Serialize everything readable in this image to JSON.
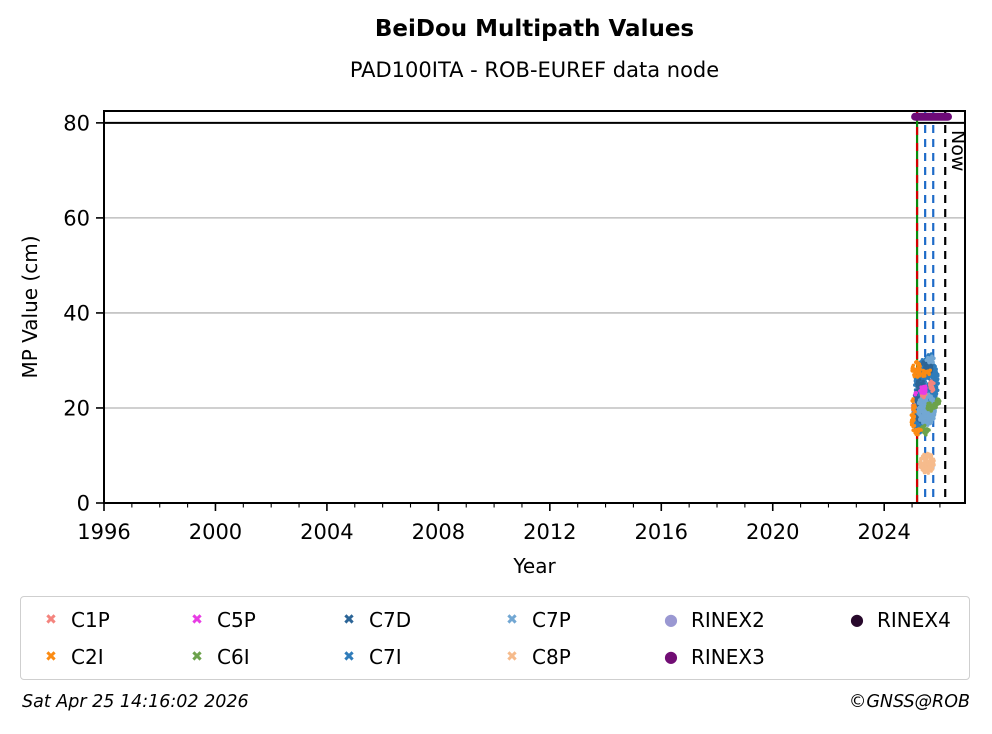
{
  "header": {
    "title": "BeiDou Multipath Values",
    "subtitle": "PAD100ITA - ROB-EUREF data node"
  },
  "footer": {
    "timestamp": "Sat Apr 25 14:16:02 2026",
    "credit": "©GNSS@ROB"
  },
  "chart_data": {
    "type": "scatter",
    "title": "BeiDou Multipath Values",
    "subtitle": "PAD100ITA - ROB-EUREF data node",
    "xlabel": "Year",
    "ylabel": "MP Value (cm)",
    "xlim": [
      1996,
      2026.9
    ],
    "ylim": [
      0,
      82.5
    ],
    "xticks": [
      1996,
      2000,
      2004,
      2008,
      2012,
      2016,
      2020,
      2024
    ],
    "yticks": [
      0,
      20,
      40,
      60,
      80
    ],
    "minor_xtick_step": 1,
    "grid": {
      "horizontal": true,
      "color": "#b3b3b3",
      "legend_position": "bottom"
    },
    "hlines": [
      {
        "y": 80,
        "color": "#000000",
        "style": "solid",
        "width": 2
      }
    ],
    "vlines": [
      {
        "x": 2025.18,
        "color": "#0a8a0a",
        "style": "solid",
        "name": "green-event-line"
      },
      {
        "x": 2025.18,
        "color": "#d40000",
        "style": "dashed",
        "dash": [
          8,
          8
        ],
        "name": "red-event-line"
      },
      {
        "x": 2025.47,
        "color": "#1e6bc8",
        "style": "dashed",
        "name": "blue-event-line-1"
      },
      {
        "x": 2025.76,
        "color": "#1e6bc8",
        "style": "dashed",
        "name": "blue-event-line-2"
      },
      {
        "x": 2026.19,
        "color": "#000000",
        "style": "dashed",
        "name": "now-line",
        "label": "Now"
      }
    ],
    "now_label": "Now",
    "availability_bars": [
      {
        "series": "RINEX3",
        "x1": 2025.11,
        "x2": 2026.29,
        "y": 81.3,
        "color": "#6d0a78",
        "thickness": 8
      }
    ],
    "series": [
      {
        "name": "C1P",
        "color": "#f4847e",
        "marker": "x",
        "z": 5,
        "clusters": [
          {
            "x": [
              2025.62,
              2025.82
            ],
            "y": [
              23.5,
              26.0
            ],
            "n": 22
          },
          {
            "x": [
              2024.98,
              2025.12
            ],
            "y": [
              19.0,
              21.0
            ],
            "n": 10
          },
          {
            "x": [
              2025.32,
              2025.5
            ],
            "y": [
              22.0,
              23.5
            ],
            "n": 10
          },
          {
            "x": [
              2025.15,
              2025.25
            ],
            "y": [
              27.5,
              28.5
            ],
            "n": 6
          }
        ]
      },
      {
        "name": "C2I",
        "color": "#fb8b13",
        "marker": "x",
        "z": 5,
        "clusters": [
          {
            "x": [
              2025.0,
              2025.32
            ],
            "y": [
              26.0,
              29.8
            ],
            "n": 45
          },
          {
            "x": [
              2024.96,
              2025.12
            ],
            "y": [
              15.5,
              22.0
            ],
            "n": 35
          },
          {
            "x": [
              2025.35,
              2025.5
            ],
            "y": [
              26.5,
              28.2
            ],
            "n": 12
          },
          {
            "x": [
              2025.0,
              2025.35
            ],
            "y": [
              14.3,
              16.0
            ],
            "n": 16
          },
          {
            "x": [
              2025.55,
              2025.7
            ],
            "y": [
              27.0,
              28.0
            ],
            "n": 8
          }
        ]
      },
      {
        "name": "C5P",
        "color": "#e83ce4",
        "marker": "x",
        "z": 6,
        "clusters": [
          {
            "x": [
              2025.25,
              2025.55
            ],
            "y": [
              23.0,
              24.8
            ],
            "n": 20
          },
          {
            "x": [
              2025.1,
              2025.2
            ],
            "y": [
              22.5,
              23.5
            ],
            "n": 6
          }
        ]
      },
      {
        "name": "C6I",
        "color": "#6ca24c",
        "marker": "x",
        "z": 4,
        "clusters": [
          {
            "x": [
              2025.5,
              2025.95
            ],
            "y": [
              19.3,
              21.5
            ],
            "n": 32
          },
          {
            "x": [
              2025.3,
              2025.62
            ],
            "y": [
              14.3,
              16.5
            ],
            "n": 26
          },
          {
            "x": [
              2025.86,
              2026.0
            ],
            "y": [
              20.5,
              22.3
            ],
            "n": 10
          }
        ]
      },
      {
        "name": "C7D",
        "color": "#2c6597",
        "marker": "x",
        "z": 2,
        "clusters": [
          {
            "x": [
              2025.05,
              2025.55
            ],
            "y": [
              17.0,
              26.0
            ],
            "n": 130
          },
          {
            "x": [
              2025.3,
              2025.75
            ],
            "y": [
              27.0,
              30.0
            ],
            "n": 40
          }
        ]
      },
      {
        "name": "C7I",
        "color": "#2f7cba",
        "marker": "x",
        "z": 1,
        "clusters": [
          {
            "x": [
              2025.08,
              2025.95
            ],
            "y": [
              20.0,
              30.5
            ],
            "n": 380
          },
          {
            "x": [
              2025.0,
              2025.5
            ],
            "y": [
              14.6,
              21.0
            ],
            "n": 200
          },
          {
            "x": [
              2025.55,
              2025.75
            ],
            "y": [
              30.0,
              31.5
            ],
            "n": 15
          }
        ]
      },
      {
        "name": "C7P",
        "color": "#72a7d3",
        "marker": "x",
        "z": 3,
        "clusters": [
          {
            "x": [
              2025.2,
              2025.85
            ],
            "y": [
              16.3,
              23.0
            ],
            "n": 230
          },
          {
            "x": [
              2025.5,
              2025.8
            ],
            "y": [
              29.3,
              31.0
            ],
            "n": 25
          }
        ]
      },
      {
        "name": "C8P",
        "color": "#f6bb8c",
        "marker": "x",
        "z": 3,
        "clusters": [
          {
            "x": [
              2025.28,
              2025.8
            ],
            "y": [
              6.2,
              10.6
            ],
            "n": 140
          }
        ]
      },
      {
        "name": "RINEX2",
        "color": "#9a98d2",
        "marker": "dot",
        "z": 0,
        "clusters": []
      },
      {
        "name": "RINEX3",
        "color": "#710d74",
        "marker": "dot",
        "z": 0,
        "clusters": []
      },
      {
        "name": "RINEX4",
        "color": "#27082b",
        "marker": "dot",
        "z": 0,
        "clusters": []
      }
    ]
  }
}
